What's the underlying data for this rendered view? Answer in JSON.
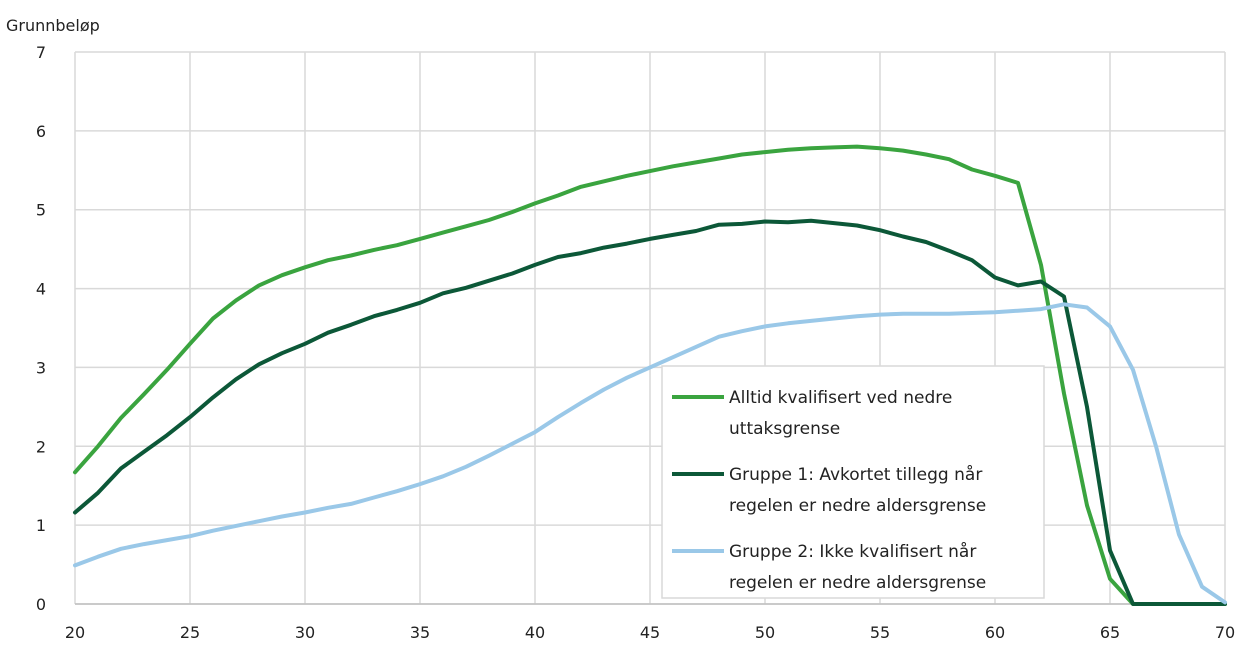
{
  "chart_data": {
    "type": "line",
    "ylabel": "Grunnbeløp",
    "xlabel": "",
    "xlim": [
      20,
      70
    ],
    "ylim": [
      0,
      7
    ],
    "xticks": [
      "20",
      "25",
      "30",
      "35",
      "40",
      "45",
      "50",
      "55",
      "60",
      "65",
      "70"
    ],
    "yticks": [
      "0",
      "1",
      "2",
      "3",
      "4",
      "5",
      "6",
      "7"
    ],
    "grid": true,
    "legend_position": "inside-lower-right",
    "x": [
      20,
      21,
      22,
      23,
      24,
      25,
      26,
      27,
      28,
      29,
      30,
      31,
      32,
      33,
      34,
      35,
      36,
      37,
      38,
      39,
      40,
      41,
      42,
      43,
      44,
      45,
      46,
      47,
      48,
      49,
      50,
      51,
      52,
      53,
      54,
      55,
      56,
      57,
      58,
      59,
      60,
      61,
      62,
      63,
      64,
      65,
      66,
      67,
      68,
      69,
      70
    ],
    "series": [
      {
        "name": "Alltid kvalifisert ved nedre uttaksgrense",
        "legend_lines": [
          "Alltid kvalifisert ved nedre",
          "uttaksgrense"
        ],
        "color": "#3aa43f",
        "values": [
          1.67,
          2.0,
          2.36,
          2.66,
          2.97,
          3.3,
          3.62,
          3.85,
          4.04,
          4.17,
          4.27,
          4.36,
          4.42,
          4.49,
          4.55,
          4.63,
          4.71,
          4.79,
          4.87,
          4.97,
          5.08,
          5.18,
          5.29,
          5.36,
          5.43,
          5.49,
          5.55,
          5.6,
          5.65,
          5.7,
          5.73,
          5.76,
          5.78,
          5.79,
          5.8,
          5.78,
          5.75,
          5.7,
          5.64,
          5.51,
          5.43,
          5.34,
          4.3,
          2.67,
          1.25,
          0.32,
          0.0,
          0.0,
          0.0,
          0.0,
          0.0
        ]
      },
      {
        "name": "Gruppe 1: Avkortet tillegg når regelen er nedre aldersgrense",
        "legend_lines": [
          "Gruppe 1: Avkortet tillegg når",
          "regelen er nedre aldersgrense"
        ],
        "color": "#0c5838",
        "values": [
          1.16,
          1.41,
          1.72,
          1.93,
          2.14,
          2.37,
          2.62,
          2.85,
          3.04,
          3.18,
          3.3,
          3.44,
          3.54,
          3.65,
          3.73,
          3.82,
          3.94,
          4.01,
          4.1,
          4.19,
          4.3,
          4.4,
          4.45,
          4.52,
          4.57,
          4.63,
          4.68,
          4.73,
          4.81,
          4.82,
          4.85,
          4.84,
          4.86,
          4.83,
          4.8,
          4.74,
          4.66,
          4.59,
          4.48,
          4.36,
          4.14,
          4.04,
          4.09,
          3.9,
          2.5,
          0.68,
          0.0,
          0.0,
          0.0,
          0.0,
          0.0
        ]
      },
      {
        "name": "Gruppe 2: Ikke kvalifisert når regelen er nedre aldersgrense",
        "legend_lines": [
          "Gruppe 2: Ikke kvalifisert når",
          "regelen er nedre aldersgrense"
        ],
        "color": "#9ac8e8",
        "values": [
          0.49,
          0.6,
          0.7,
          0.76,
          0.81,
          0.86,
          0.93,
          0.99,
          1.05,
          1.11,
          1.16,
          1.22,
          1.27,
          1.35,
          1.43,
          1.52,
          1.62,
          1.74,
          1.88,
          2.03,
          2.18,
          2.37,
          2.55,
          2.72,
          2.87,
          3.0,
          3.13,
          3.26,
          3.39,
          3.46,
          3.52,
          3.56,
          3.59,
          3.62,
          3.65,
          3.67,
          3.68,
          3.68,
          3.68,
          3.69,
          3.7,
          3.72,
          3.74,
          3.8,
          3.76,
          3.52,
          2.97,
          2.0,
          0.88,
          0.22,
          0.02
        ]
      }
    ]
  }
}
